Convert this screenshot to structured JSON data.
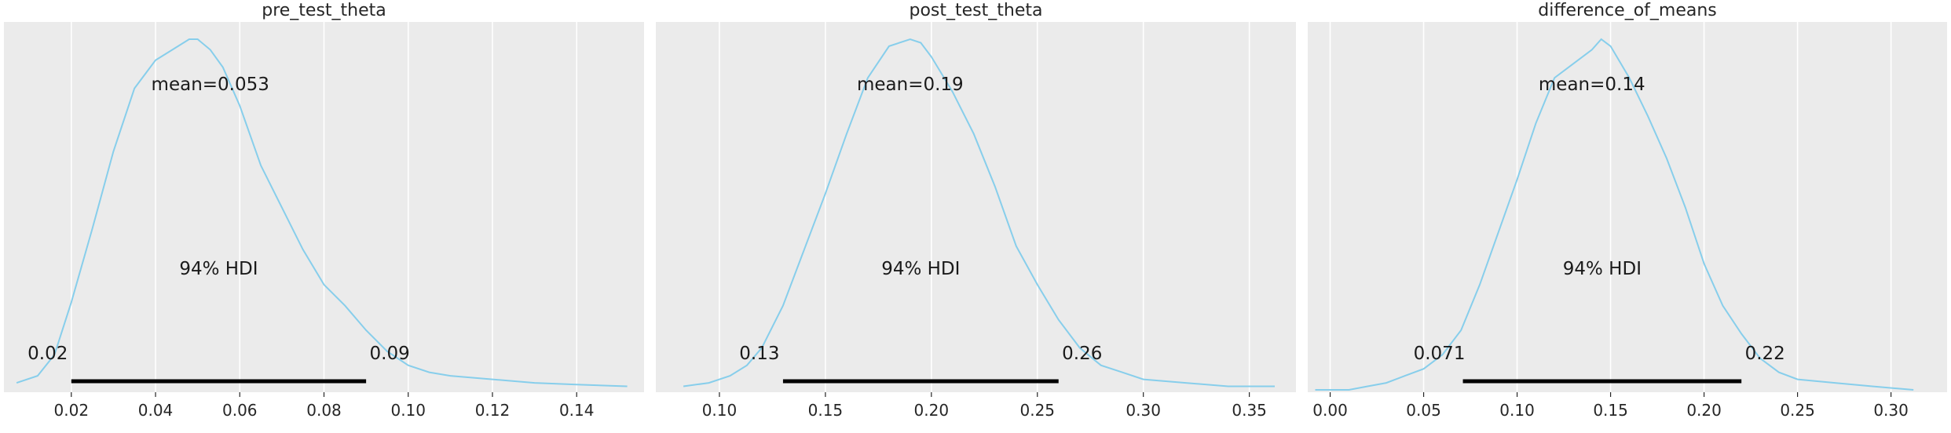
{
  "chart_data": [
    {
      "type": "line",
      "title": "pre_test_theta",
      "xlim": [
        0.004,
        0.156
      ],
      "xticks": [
        "0.02",
        "0.04",
        "0.06",
        "0.08",
        "0.10",
        "0.12",
        "0.14"
      ],
      "grid": true,
      "curve": {
        "x": [
          0.007,
          0.012,
          0.016,
          0.02,
          0.025,
          0.03,
          0.035,
          0.04,
          0.044,
          0.048,
          0.05,
          0.053,
          0.056,
          0.06,
          0.065,
          0.07,
          0.075,
          0.08,
          0.085,
          0.09,
          0.095,
          0.1,
          0.105,
          0.11,
          0.115,
          0.12,
          0.13,
          0.14,
          0.152
        ],
        "y": [
          0.02,
          0.04,
          0.1,
          0.25,
          0.46,
          0.68,
          0.86,
          0.94,
          0.97,
          1.0,
          1.0,
          0.97,
          0.92,
          0.81,
          0.64,
          0.52,
          0.4,
          0.3,
          0.24,
          0.17,
          0.11,
          0.07,
          0.05,
          0.04,
          0.035,
          0.03,
          0.02,
          0.015,
          0.01
        ]
      },
      "mean_label": "mean=0.053",
      "hdi_label": "94% HDI",
      "hdi": [
        0.02,
        0.09
      ],
      "hdi_low_label": "0.02",
      "hdi_high_label": "0.09"
    },
    {
      "type": "line",
      "title": "post_test_theta",
      "xlim": [
        0.07,
        0.372
      ],
      "xticks": [
        "0.10",
        "0.15",
        "0.20",
        "0.25",
        "0.30",
        "0.35"
      ],
      "grid": true,
      "curve": {
        "x": [
          0.083,
          0.095,
          0.105,
          0.113,
          0.12,
          0.13,
          0.14,
          0.15,
          0.16,
          0.17,
          0.18,
          0.19,
          0.195,
          0.2,
          0.21,
          0.22,
          0.23,
          0.24,
          0.25,
          0.26,
          0.27,
          0.28,
          0.29,
          0.3,
          0.32,
          0.34,
          0.362
        ],
        "y": [
          0.01,
          0.02,
          0.04,
          0.07,
          0.12,
          0.24,
          0.4,
          0.56,
          0.73,
          0.89,
          0.98,
          1.0,
          0.99,
          0.95,
          0.85,
          0.73,
          0.58,
          0.41,
          0.3,
          0.2,
          0.12,
          0.07,
          0.05,
          0.03,
          0.02,
          0.01,
          0.01
        ]
      },
      "mean_label": "mean=0.19",
      "hdi_label": "94% HDI",
      "hdi": [
        0.13,
        0.26
      ],
      "hdi_low_label": "0.13",
      "hdi_high_label": "0.26"
    },
    {
      "type": "line",
      "title": "difference_of_means",
      "xlim": [
        -0.012,
        0.33
      ],
      "xticks": [
        "0.00",
        "0.05",
        "0.10",
        "0.15",
        "0.20",
        "0.25",
        "0.30"
      ],
      "grid": true,
      "curve": {
        "x": [
          -0.008,
          0.01,
          0.02,
          0.03,
          0.04,
          0.05,
          0.06,
          0.07,
          0.08,
          0.09,
          0.1,
          0.11,
          0.12,
          0.13,
          0.14,
          0.145,
          0.15,
          0.16,
          0.17,
          0.18,
          0.19,
          0.2,
          0.21,
          0.22,
          0.23,
          0.24,
          0.25,
          0.27,
          0.29,
          0.312
        ],
        "y": [
          0.0,
          0.0,
          0.01,
          0.02,
          0.04,
          0.06,
          0.1,
          0.17,
          0.3,
          0.45,
          0.6,
          0.76,
          0.89,
          0.93,
          0.97,
          1.0,
          0.98,
          0.89,
          0.78,
          0.66,
          0.52,
          0.36,
          0.24,
          0.16,
          0.09,
          0.05,
          0.03,
          0.02,
          0.01,
          0.0
        ]
      },
      "mean_label": "mean=0.14",
      "hdi_label": "94% HDI",
      "hdi": [
        0.071,
        0.22
      ],
      "hdi_low_label": "0.071",
      "hdi_high_label": "0.22"
    }
  ],
  "style": {
    "background": "#ffffff",
    "plot_background": "#ebebeb",
    "curve_color": "#87ceeb",
    "hdi_color": "#000000",
    "grid_color": "#ffffff"
  }
}
